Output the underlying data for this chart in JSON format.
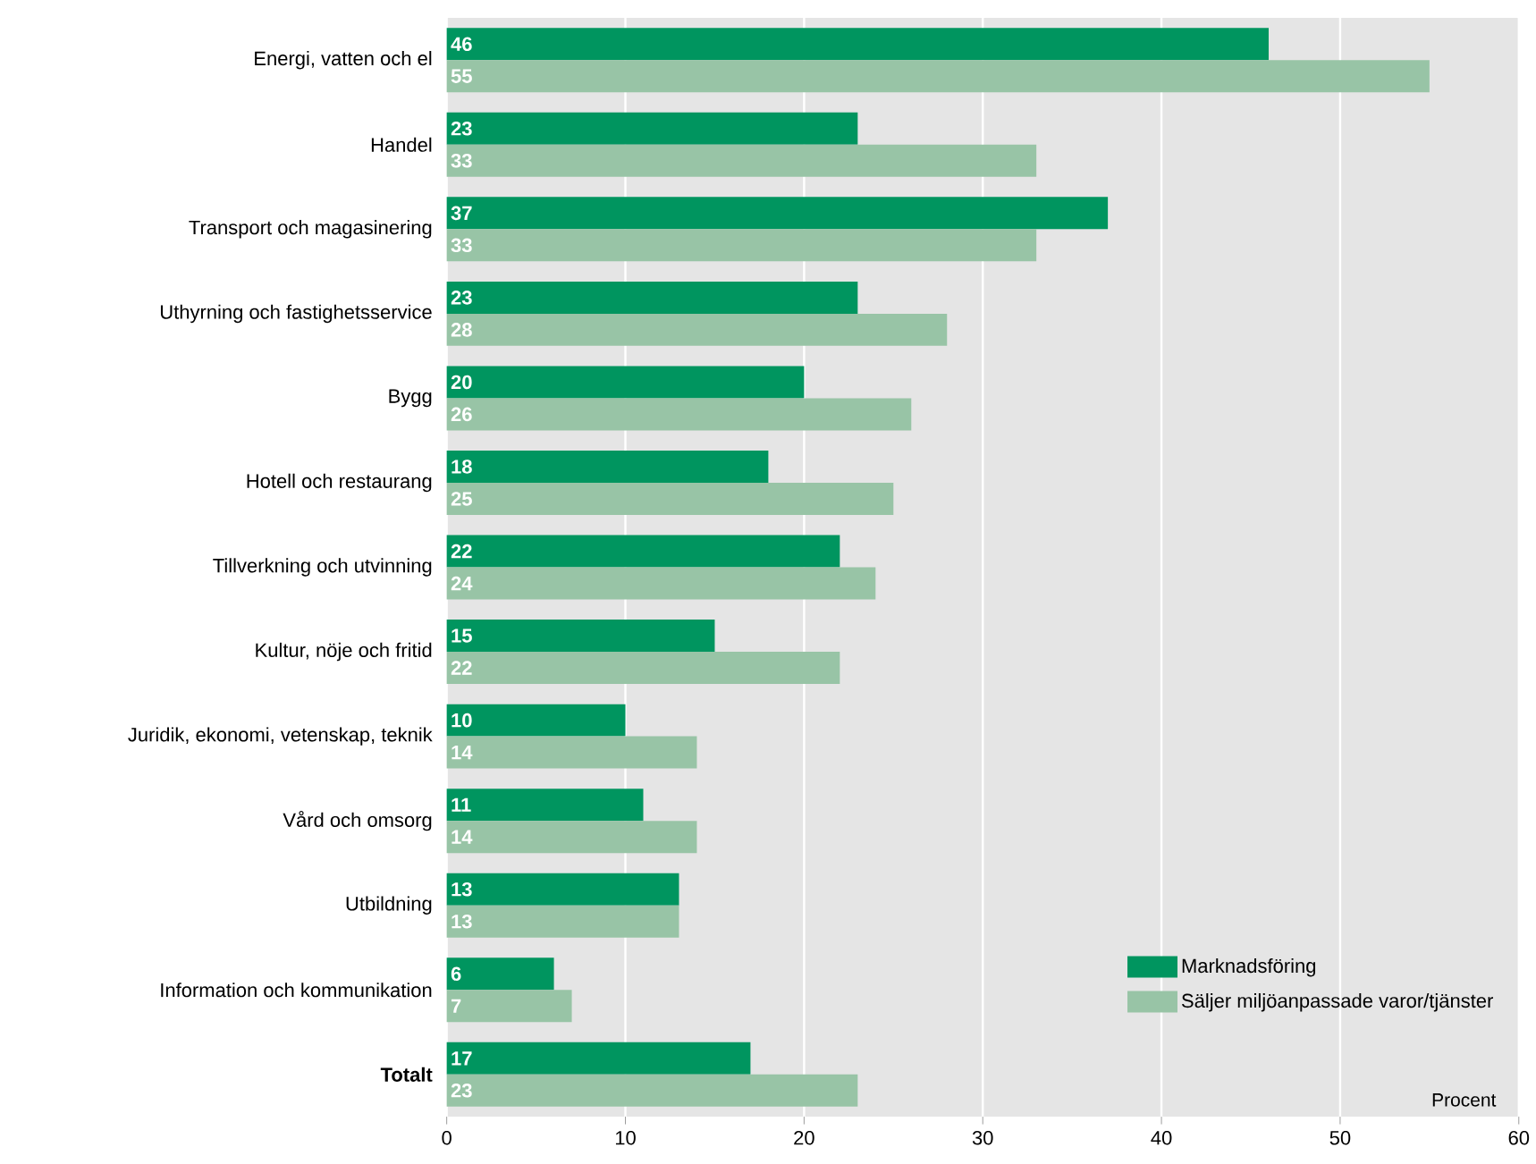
{
  "chart_data": {
    "type": "bar",
    "orientation": "horizontal",
    "xlabel": "Procent",
    "categories": [
      "Energi, vatten och el",
      "Handel",
      "Transport och magasinering",
      "Uthyrning och fastighetsservice",
      "Bygg",
      "Hotell och restaurang",
      "Tillverkning och utvinning",
      "Kultur, nöje och fritid",
      "Juridik, ekonomi, vetenskap, teknik",
      "Vård och omsorg",
      "Utbildning",
      "Information och kommunikation",
      "**Totalt**"
    ],
    "series": [
      {
        "name": "Marknadsföring",
        "color": "#00955f",
        "values": [
          46,
          23,
          37,
          23,
          20,
          18,
          22,
          15,
          10,
          11,
          13,
          6,
          17
        ]
      },
      {
        "name": "Säljer miljöanpassade varor/tjänster",
        "color": "#98c4a6",
        "values": [
          55,
          33,
          33,
          28,
          26,
          25,
          24,
          22,
          14,
          14,
          13,
          7,
          23
        ]
      }
    ],
    "xlim": [
      0,
      60
    ],
    "xticks": [
      0,
      10,
      20,
      30,
      40,
      50,
      60
    ],
    "grid": "x",
    "legend": "bottom right",
    "data_labels": true
  }
}
